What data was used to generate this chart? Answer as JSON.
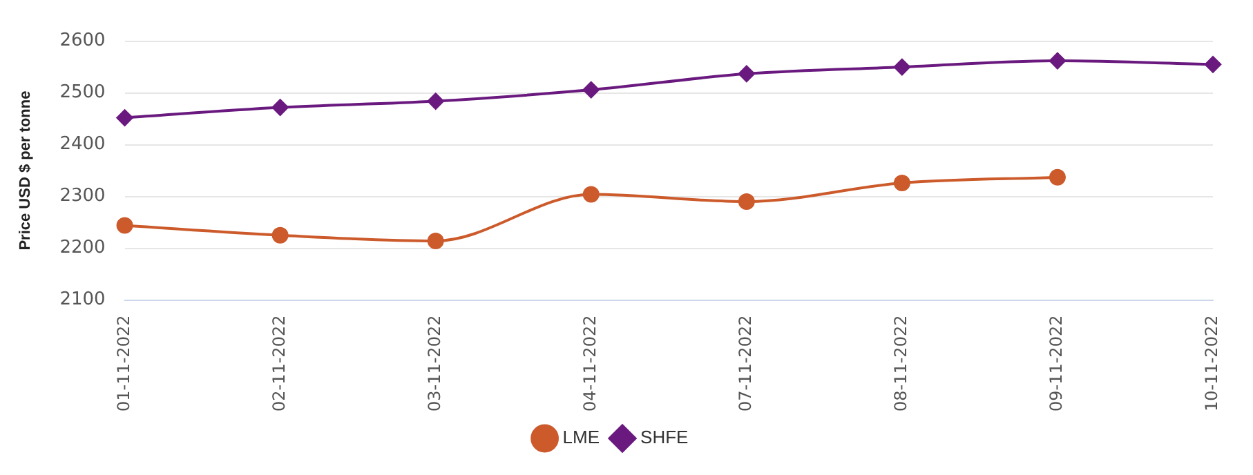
{
  "chart_data": {
    "type": "line",
    "ylabel": "Price USD $ per tonne",
    "categories": [
      "01-11-2022",
      "02-11-2022",
      "03-11-2022",
      "04-11-2022",
      "07-11-2022",
      "08-11-2022",
      "09-11-2022",
      "10-11-2022"
    ],
    "series": [
      {
        "name": "LME",
        "color": "#cc5a2b",
        "marker": "circle",
        "values": [
          2244,
          2225,
          2214,
          2304,
          2290,
          2326,
          2337,
          null
        ]
      },
      {
        "name": "SHFE",
        "color": "#6a1a7f",
        "marker": "diamond",
        "values": [
          2452,
          2472,
          2484,
          2506,
          2537,
          2550,
          2562,
          2555
        ]
      }
    ],
    "ylim": [
      2100,
      2600
    ],
    "yticks": [
      2100,
      2200,
      2300,
      2400,
      2500,
      2600
    ],
    "grid": "y",
    "legend": "bottom"
  }
}
